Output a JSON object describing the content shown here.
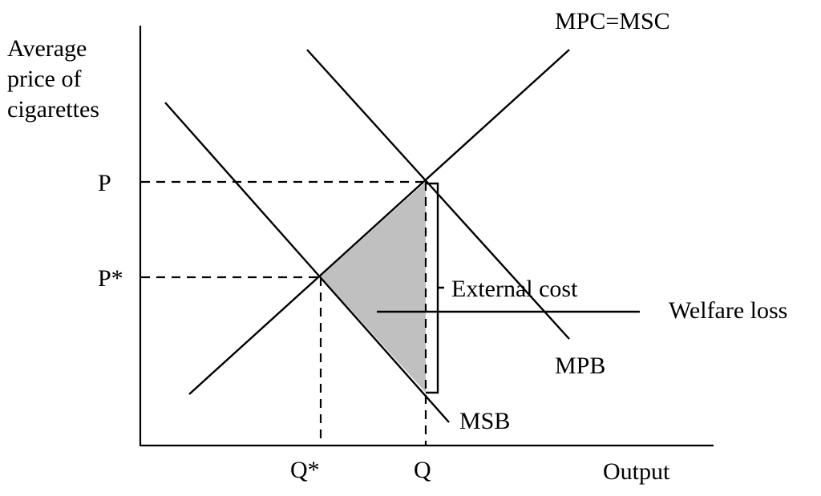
{
  "diagram": {
    "y_axis_label": [
      "Average",
      "price of",
      "cigarettes"
    ],
    "x_axis_label": "Output",
    "price_labels": {
      "p": "P",
      "p_star": "P*"
    },
    "quantity_labels": {
      "q_star": "Q*",
      "q": "Q"
    },
    "curve_labels": {
      "mpc_msc": "MPC=MSC",
      "mpb": "MPB",
      "msb": "MSB"
    },
    "annotations": {
      "external_cost": "External cost",
      "welfare_loss": "Welfare loss"
    },
    "colors": {
      "welfare_area": "#c0c0c0",
      "lines": "#000000"
    }
  }
}
